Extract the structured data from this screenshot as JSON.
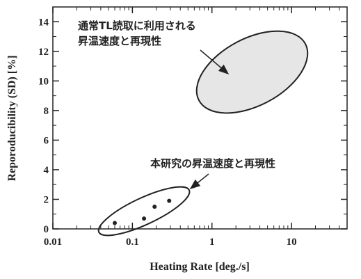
{
  "chart_data": {
    "type": "scatter",
    "xlabel": "Heating Rate [deg./s]",
    "ylabel": "Reporoducibility (SD) [%]",
    "x_scale": "log",
    "xlim": [
      0.01,
      50
    ],
    "ylim": [
      0,
      15
    ],
    "x_ticks": [
      {
        "value": 0.01,
        "label": "0.01"
      },
      {
        "value": 0.1,
        "label": "0.1"
      },
      {
        "value": 1,
        "label": "1"
      },
      {
        "value": 10,
        "label": "10"
      }
    ],
    "y_ticks": [
      {
        "value": 0,
        "label": "0"
      },
      {
        "value": 2,
        "label": "2"
      },
      {
        "value": 4,
        "label": "4"
      },
      {
        "value": 6,
        "label": "6"
      },
      {
        "value": 8,
        "label": "8"
      },
      {
        "value": 10,
        "label": "10"
      },
      {
        "value": 12,
        "label": "12"
      },
      {
        "value": 14,
        "label": "14"
      }
    ],
    "series": [
      {
        "points": [
          {
            "x": 0.06,
            "y": 0.4
          },
          {
            "x": 0.14,
            "y": 0.7
          },
          {
            "x": 0.19,
            "y": 1.5
          },
          {
            "x": 0.29,
            "y": 1.9
          }
        ]
      }
    ],
    "regions": [
      {
        "label_lines": [
          "通常TL読取に利用される",
          "昇温速度と再現性"
        ],
        "shaded": true,
        "fill": "#e6e6e6",
        "center": {
          "x": 3.2,
          "y": 10.6
        },
        "x_range": [
          0.55,
          18
        ],
        "y_range": [
          6.5,
          14.6
        ]
      },
      {
        "label_lines": [
          "本研究の昇温速度と再現性"
        ],
        "shaded": false,
        "center": {
          "x": 0.14,
          "y": 1.2
        },
        "x_range": [
          0.028,
          0.5
        ],
        "y_range": [
          0.1,
          3.0
        ]
      }
    ]
  }
}
